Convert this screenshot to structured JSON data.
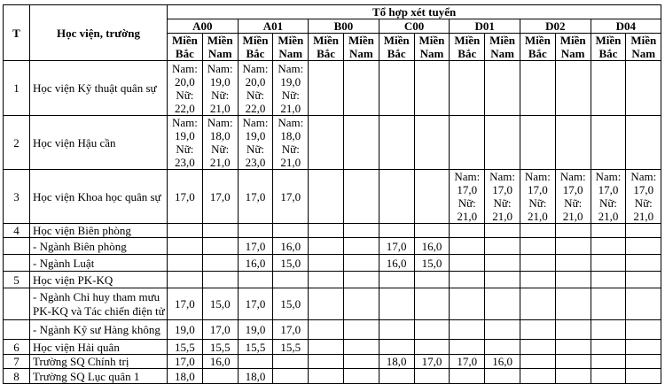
{
  "header": {
    "col_t": "T",
    "col_school": "Học viện, trường",
    "group_title": "Tổ hợp xét tuyển",
    "combos": [
      "A00",
      "A01",
      "B00",
      "C00",
      "D01",
      "D02",
      "D04"
    ],
    "north": "Miền Bắc",
    "south": "Miền Nam"
  },
  "rows": [
    {
      "t": "1",
      "name": "Học viện Kỹ thuật quân sự",
      "cells": [
        "Nam:\n20,0\nNữ:\n22,0",
        "Nam:\n19,0\nNữ:\n21,0",
        "Nam:\n20,0\nNữ:\n22,0",
        "Nam:\n19,0\nNữ:\n21,0",
        "",
        "",
        "",
        "",
        "",
        "",
        "",
        "",
        "",
        ""
      ]
    },
    {
      "t": "2",
      "name": "Học viện Hậu cần",
      "cells": [
        "Nam:\n19,0\nNữ:\n23,0",
        "Nam:\n18,0\nNữ:\n21,0",
        "Nam:\n19,0\nNữ:\n23,0",
        "Nam:\n18,0\nNữ:\n21,0",
        "",
        "",
        "",
        "",
        "",
        "",
        "",
        "",
        "",
        ""
      ]
    },
    {
      "t": "3",
      "name": "Học viện Khoa học quân sự",
      "cells": [
        "17,0",
        "17,0",
        "17,0",
        "17,0",
        "",
        "",
        "",
        "",
        "Nam:\n17,0\nNữ:\n21,0",
        "Nam:\n17,0\nNữ:\n21,0",
        "Nam:\n17,0\nNữ:\n21,0",
        "Nam:\n17,0\nNữ:\n21,0",
        "Nam:\n17,0\nNữ:\n21,0",
        "Nam:\n17,0\nNữ:\n21,0"
      ]
    },
    {
      "t": "4",
      "name": "Học viện Biên phòng",
      "cells": [
        "",
        "",
        "",
        "",
        "",
        "",
        "",
        "",
        "",
        "",
        "",
        "",
        "",
        ""
      ]
    },
    {
      "t": "",
      "name": "- Ngành Biên phòng",
      "cells": [
        "",
        "",
        "17,0",
        "16,0",
        "",
        "",
        "17,0",
        "16,0",
        "",
        "",
        "",
        "",
        "",
        ""
      ]
    },
    {
      "t": "",
      "name": "- Ngành Luật",
      "cells": [
        "",
        "",
        "16,0",
        "15,0",
        "",
        "",
        "16,0",
        "15,0",
        "",
        "",
        "",
        "",
        "",
        ""
      ]
    },
    {
      "t": "5",
      "name": "Học viện PK-KQ",
      "cells": [
        "",
        "",
        "",
        "",
        "",
        "",
        "",
        "",
        "",
        "",
        "",
        "",
        "",
        ""
      ]
    },
    {
      "t": "",
      "name": "- Ngành Chỉ huy tham mưu PK-KQ và Tác chiến điện tử",
      "cells": [
        "17,0",
        "15,0",
        "17,0",
        "15,0",
        "",
        "",
        "",
        "",
        "",
        "",
        "",
        "",
        "",
        ""
      ]
    },
    {
      "t": "",
      "name": "-  Ngành Kỹ sư Hàng không",
      "cells": [
        "19,0",
        "17,0",
        "19,0",
        "17,0",
        "",
        "",
        "",
        "",
        "",
        "",
        "",
        "",
        "",
        ""
      ]
    },
    {
      "t": "6",
      "name": "Học viện Hải quân",
      "cells": [
        "15,5",
        "15,5",
        "15,5",
        "15,5",
        "",
        "",
        "",
        "",
        "",
        "",
        "",
        "",
        "",
        ""
      ]
    },
    {
      "t": "7",
      "name": "Trường SQ Chính trị",
      "cells": [
        "17,0",
        "16,0",
        "",
        "",
        "",
        "",
        "18,0",
        "17,0",
        "17,0",
        "16,0",
        "",
        "",
        "",
        ""
      ]
    },
    {
      "t": "8",
      "name": "Trường SQ Lục quân 1",
      "cells": [
        "18,0",
        "",
        "18,0",
        "",
        "",
        "",
        "",
        "",
        "",
        "",
        "",
        "",
        "",
        ""
      ]
    }
  ]
}
